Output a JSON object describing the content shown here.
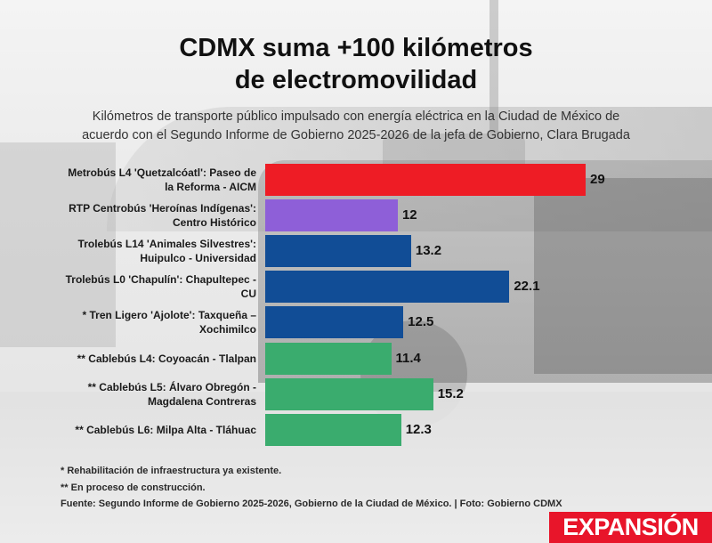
{
  "title_line1": "CDMX suma +100 kilómetros",
  "title_line2": "de electromovilidad",
  "subtitle_line1": "Kilómetros de transporte público impulsado con energía eléctrica en la Ciudad de México de",
  "subtitle_line2": "acuerdo con el Segundo Informe de Gobierno 2025-2026 de la jefa de Gobierno, Clara Brugada",
  "notes": {
    "note1": "* Rehabilitación de infraestructura ya existente.",
    "note2": "** En proceso de construcción.",
    "source": "Fuente: Segundo Informe de Gobierno 2025-2026, Gobierno de la Ciudad de México. | Foto: Gobierno CDMX"
  },
  "logo": "EXPANSIÓN",
  "colors": {
    "metrobus": "#ee1c25",
    "rtp": "#8e5fd8",
    "trolebus": "#114d96",
    "cablebus": "#3aac6e",
    "logo_bg": "#e8152a"
  },
  "chart_data": {
    "type": "bar",
    "orientation": "horizontal",
    "categories": [
      "Metrobús L4 'Quetzalcóatl': Paseo de la Reforma - AICM",
      "RTP Centrobús 'Heroínas Indígenas': Centro Histórico",
      "Trolebús L14 'Animales Silvestres': Huipulco - Universidad",
      "Trolebús L0 'Chapulín': Chapultepec - CU",
      "* Tren Ligero 'Ajolote': Taxqueña – Xochimilco",
      "** Cablebús L4: Coyoacán - Tlalpan",
      "** Cablebús L5: Álvaro Obregón - Magdalena Contreras",
      "** Cablebús L6: Milpa Alta - Tláhuac"
    ],
    "label_lines": [
      [
        "Metrobús L4 'Quetzalcóatl': Paseo de",
        "la Reforma - AICM"
      ],
      [
        "RTP Centrobús 'Heroínas Indígenas':",
        "Centro Histórico"
      ],
      [
        "Trolebús L14 'Animales Silvestres':",
        "Huipulco - Universidad"
      ],
      [
        "Trolebús L0 'Chapulín': Chapultepec -",
        "CU"
      ],
      [
        "* Tren Ligero 'Ajolote': Taxqueña –",
        "Xochimilco"
      ],
      [
        "** Cablebús L4: Coyoacán - Tlalpan"
      ],
      [
        "** Cablebús L5: Álvaro Obregón -",
        "Magdalena Contreras"
      ],
      [
        "** Cablebús L6: Milpa Alta - Tláhuac"
      ]
    ],
    "values": [
      29,
      12,
      13.2,
      22.1,
      12.5,
      11.4,
      15.2,
      12.3
    ],
    "value_labels": [
      "29",
      "12",
      "13.2",
      "22.1",
      "12.5",
      "11.4",
      "15.2",
      "12.3"
    ],
    "bar_colors": [
      "#ee1c25",
      "#8e5fd8",
      "#114d96",
      "#114d96",
      "#114d96",
      "#3aac6e",
      "#3aac6e",
      "#3aac6e"
    ],
    "xlim": [
      0,
      29
    ],
    "grid": false,
    "legend": "none"
  }
}
